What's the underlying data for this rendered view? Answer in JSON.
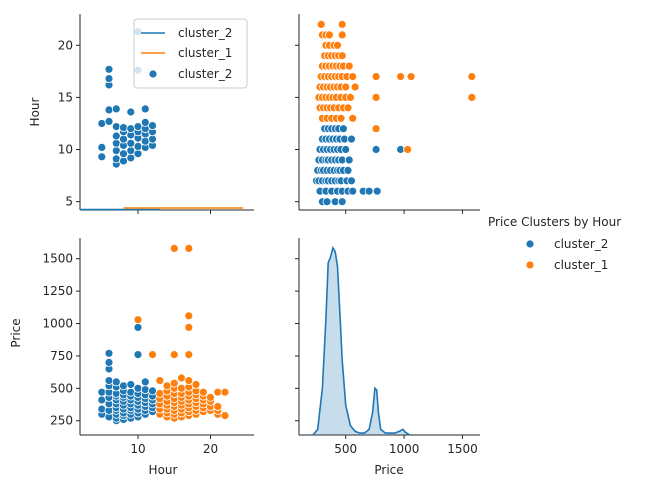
{
  "colors": {
    "cluster_2": "#1f77b4",
    "cluster_1": "#ff7f0e"
  },
  "chart_data": {
    "type": "scatter",
    "layout": "pairplot",
    "variables": [
      "Hour",
      "Price"
    ],
    "axis_labels": {
      "hour": "Hour",
      "price": "Price"
    },
    "hour_ticks": [
      {
        "value": 5,
        "label": "5"
      },
      {
        "value": 10,
        "label": "10"
      },
      {
        "value": 15,
        "label": "15"
      },
      {
        "value": 20,
        "label": "20"
      }
    ],
    "hour_xticks": [
      {
        "value": 10,
        "label": "10"
      },
      {
        "value": 20,
        "label": "20"
      }
    ],
    "price_ticks": [
      {
        "value": 250,
        "label": "250"
      },
      {
        "value": 500,
        "label": "500"
      },
      {
        "value": 750,
        "label": "750"
      },
      {
        "value": 1000,
        "label": "1000"
      },
      {
        "value": 1250,
        "label": "1250"
      },
      {
        "value": 1500,
        "label": "1500"
      }
    ],
    "price_xticks": [
      {
        "value": 500,
        "label": "500"
      },
      {
        "value": 1000,
        "label": "1000"
      },
      {
        "value": 1500,
        "label": "1500"
      }
    ],
    "hour_lim": [
      4.2,
      23
    ],
    "hour_xlim": [
      2,
      26
    ],
    "price_lim": [
      140,
      1660
    ],
    "price_xlim": [
      100,
      1650
    ],
    "top_left_legend": {
      "placement": "upper-center",
      "entries": [
        {
          "label": "cluster_2",
          "kind": "line",
          "series": "cluster_2"
        },
        {
          "label": "cluster_1",
          "kind": "line",
          "series": "cluster_1"
        },
        {
          "label": "cluster_2",
          "kind": "marker",
          "series": "cluster_2"
        }
      ]
    },
    "figure_legend": {
      "title": "Price Clusters by Hour",
      "placement": "right",
      "entries": [
        {
          "label": "cluster_2",
          "series": "cluster_2"
        },
        {
          "label": "cluster_1",
          "series": "cluster_1"
        }
      ]
    },
    "series": [
      {
        "name": "cluster_2",
        "points": [
          [
            5,
            300
          ],
          [
            5,
            340
          ],
          [
            5,
            410
          ],
          [
            5,
            470
          ],
          [
            6,
            280
          ],
          [
            6,
            330
          ],
          [
            6,
            380
          ],
          [
            6,
            430
          ],
          [
            6,
            470
          ],
          [
            6,
            520
          ],
          [
            6,
            560
          ],
          [
            6,
            650
          ],
          [
            6,
            700
          ],
          [
            6,
            770
          ],
          [
            7,
            250
          ],
          [
            7,
            270
          ],
          [
            7,
            300
          ],
          [
            7,
            330
          ],
          [
            7,
            350
          ],
          [
            7,
            380
          ],
          [
            7,
            410
          ],
          [
            7,
            440
          ],
          [
            7,
            460
          ],
          [
            7,
            510
          ],
          [
            7,
            550
          ],
          [
            8,
            260
          ],
          [
            8,
            290
          ],
          [
            8,
            310
          ],
          [
            8,
            340
          ],
          [
            8,
            370
          ],
          [
            8,
            400
          ],
          [
            8,
            430
          ],
          [
            8,
            450
          ],
          [
            8,
            480
          ],
          [
            8,
            520
          ],
          [
            9,
            270
          ],
          [
            9,
            300
          ],
          [
            9,
            330
          ],
          [
            9,
            350
          ],
          [
            9,
            380
          ],
          [
            9,
            410
          ],
          [
            9,
            440
          ],
          [
            9,
            470
          ],
          [
            9,
            530
          ],
          [
            10,
            280
          ],
          [
            10,
            310
          ],
          [
            10,
            340
          ],
          [
            10,
            370
          ],
          [
            10,
            400
          ],
          [
            10,
            430
          ],
          [
            10,
            460
          ],
          [
            10,
            500
          ],
          [
            10,
            760
          ],
          [
            10,
            970
          ],
          [
            11,
            300
          ],
          [
            11,
            330
          ],
          [
            11,
            360
          ],
          [
            11,
            390
          ],
          [
            11,
            420
          ],
          [
            11,
            450
          ],
          [
            11,
            490
          ],
          [
            11,
            550
          ],
          [
            12,
            320
          ],
          [
            12,
            350
          ],
          [
            12,
            380
          ],
          [
            12,
            410
          ],
          [
            12,
            440
          ],
          [
            12,
            480
          ]
        ]
      },
      {
        "name": "cluster_1",
        "points": [
          [
            10,
            1030
          ],
          [
            12,
            760
          ],
          [
            13,
            300
          ],
          [
            13,
            340
          ],
          [
            13,
            380
          ],
          [
            13,
            420
          ],
          [
            13,
            460
          ],
          [
            13,
            560
          ],
          [
            14,
            280
          ],
          [
            14,
            310
          ],
          [
            14,
            340
          ],
          [
            14,
            370
          ],
          [
            14,
            400
          ],
          [
            14,
            440
          ],
          [
            14,
            480
          ],
          [
            14,
            520
          ],
          [
            15,
            270
          ],
          [
            15,
            300
          ],
          [
            15,
            330
          ],
          [
            15,
            360
          ],
          [
            15,
            390
          ],
          [
            15,
            420
          ],
          [
            15,
            460
          ],
          [
            15,
            500
          ],
          [
            15,
            540
          ],
          [
            15,
            760
          ],
          [
            15,
            1580
          ],
          [
            16,
            280
          ],
          [
            16,
            310
          ],
          [
            16,
            340
          ],
          [
            16,
            370
          ],
          [
            16,
            400
          ],
          [
            16,
            430
          ],
          [
            16,
            460
          ],
          [
            16,
            500
          ],
          [
            16,
            580
          ],
          [
            17,
            290
          ],
          [
            17,
            320
          ],
          [
            17,
            350
          ],
          [
            17,
            380
          ],
          [
            17,
            410
          ],
          [
            17,
            440
          ],
          [
            17,
            470
          ],
          [
            17,
            510
          ],
          [
            17,
            560
          ],
          [
            17,
            760
          ],
          [
            17,
            970
          ],
          [
            17,
            1060
          ],
          [
            17,
            1580
          ],
          [
            18,
            300
          ],
          [
            18,
            330
          ],
          [
            18,
            360
          ],
          [
            18,
            390
          ],
          [
            18,
            420
          ],
          [
            18,
            450
          ],
          [
            18,
            480
          ],
          [
            18,
            530
          ],
          [
            19,
            320
          ],
          [
            19,
            350
          ],
          [
            19,
            380
          ],
          [
            19,
            410
          ],
          [
            19,
            440
          ],
          [
            19,
            470
          ],
          [
            20,
            330
          ],
          [
            20,
            360
          ],
          [
            20,
            400
          ],
          [
            20,
            430
          ],
          [
            21,
            300
          ],
          [
            21,
            330
          ],
          [
            21,
            360
          ],
          [
            21,
            470
          ],
          [
            22,
            290
          ],
          [
            22,
            470
          ]
        ]
      }
    ],
    "price_density": {
      "series": "cluster_2",
      "x": [
        220,
        260,
        300,
        330,
        350,
        370,
        390,
        410,
        430,
        450,
        470,
        500,
        540,
        580,
        620,
        660,
        700,
        730,
        750,
        765,
        780,
        800,
        840,
        880,
        920,
        960,
        990,
        1010,
        1050
      ],
      "y": [
        0,
        0.03,
        0.25,
        0.62,
        0.92,
        0.95,
        1.0,
        0.98,
        0.9,
        0.65,
        0.4,
        0.16,
        0.05,
        0.02,
        0.01,
        0.01,
        0.03,
        0.12,
        0.25,
        0.24,
        0.12,
        0.03,
        0.01,
        0.01,
        0.01,
        0.02,
        0.03,
        0.015,
        0
      ]
    },
    "hour_density_line": {
      "level": 0.02
    }
  }
}
